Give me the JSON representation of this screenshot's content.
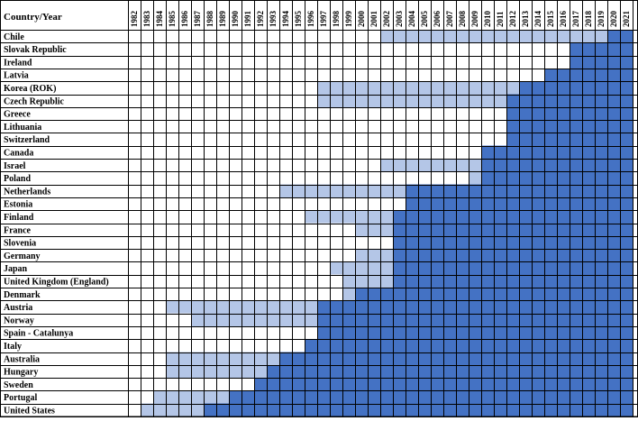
{
  "header_label": "Country/Year",
  "legend_colors": {
    "light": "#b4c6e7",
    "dark": "#4472c4",
    "none": "#ffffff"
  },
  "years": [
    "1982",
    "1983",
    "1984",
    "1985",
    "1986",
    "1987",
    "1988",
    "1989",
    "1990",
    "1991",
    "1992",
    "1993",
    "1994",
    "1995",
    "1996",
    "1997",
    "1998",
    "1999",
    "2000",
    "2001",
    "2002",
    "2003",
    "2004",
    "2005",
    "2006",
    "2007",
    "2008",
    "2009",
    "2010",
    "2011",
    "2012",
    "2013",
    "2014",
    "2015",
    "2016",
    "2017",
    "2018",
    "2019",
    "2020",
    "2021"
  ],
  "chart_data": {
    "type": "table",
    "rows": [
      {
        "country": "Chile",
        "light_from": "2002",
        "dark_from": "2020"
      },
      {
        "country": "Slovak Republic",
        "light_from": null,
        "dark_from": "2017"
      },
      {
        "country": "Ireland",
        "light_from": null,
        "dark_from": "2017"
      },
      {
        "country": "Latvia",
        "light_from": null,
        "dark_from": "2015"
      },
      {
        "country": "Korea (ROK)",
        "light_from": "1997",
        "dark_from": "2013"
      },
      {
        "country": "Czech Republic",
        "light_from": "1997",
        "dark_from": "2012"
      },
      {
        "country": "Greece",
        "light_from": null,
        "dark_from": "2012"
      },
      {
        "country": "Lithuania",
        "light_from": null,
        "dark_from": "2012"
      },
      {
        "country": "Switzerland",
        "light_from": null,
        "dark_from": "2012"
      },
      {
        "country": "Canada",
        "light_from": null,
        "dark_from": "2010"
      },
      {
        "country": "Israel",
        "light_from": "2002",
        "dark_from": "2010"
      },
      {
        "country": "Poland",
        "light_from": "2009",
        "dark_from": "2010"
      },
      {
        "country": "Netherlands",
        "light_from": "1994",
        "dark_from": "2004"
      },
      {
        "country": "Estonia",
        "light_from": null,
        "dark_from": "2004"
      },
      {
        "country": "Finland",
        "light_from": "1996",
        "dark_from": "2003"
      },
      {
        "country": "France",
        "light_from": "2000",
        "dark_from": "2003"
      },
      {
        "country": "Slovenia",
        "light_from": null,
        "dark_from": "2003"
      },
      {
        "country": "Germany",
        "light_from": "2000",
        "dark_from": "2003"
      },
      {
        "country": "Japan",
        "light_from": "1998",
        "dark_from": "2003"
      },
      {
        "country": "United Kingdom (England)",
        "light_from": "1999",
        "dark_from": "2003"
      },
      {
        "country": "Denmark",
        "light_from": "1999",
        "dark_from": "2000"
      },
      {
        "country": "Austria",
        "light_from": "1985",
        "dark_from": "1997"
      },
      {
        "country": "Norway",
        "light_from": "1987",
        "dark_from": "1997"
      },
      {
        "country": "Spain - Catalunya",
        "light_from": null,
        "dark_from": "1997"
      },
      {
        "country": "Italy",
        "light_from": null,
        "dark_from": "1996"
      },
      {
        "country": "Australia",
        "light_from": "1985",
        "dark_from": "1994"
      },
      {
        "country": "Hungary",
        "light_from": "1985",
        "dark_from": "1993"
      },
      {
        "country": "Sweden",
        "light_from": null,
        "dark_from": "1992"
      },
      {
        "country": "Portugal",
        "light_from": "1984",
        "dark_from": "1990"
      },
      {
        "country": "United States",
        "light_from": "1983",
        "dark_from": "1988"
      }
    ]
  }
}
